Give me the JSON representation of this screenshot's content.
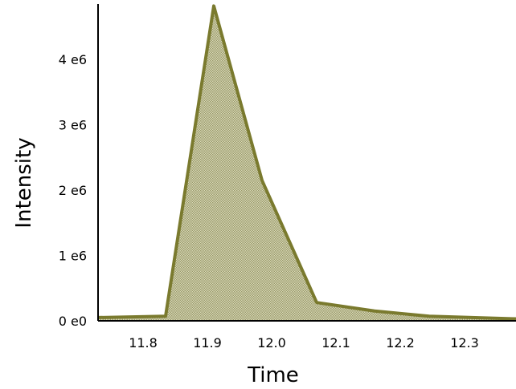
{
  "chart_data": {
    "type": "area",
    "xlabel": "Time",
    "ylabel": "Intensity",
    "xlim": [
      11.73,
      12.38
    ],
    "ylim": [
      0,
      4.85
    ],
    "y_unit_label": "e6",
    "x_ticks": [
      {
        "value": 11.8,
        "label": "11.8"
      },
      {
        "value": 11.9,
        "label": "11.9"
      },
      {
        "value": 12.0,
        "label": "12.0"
      },
      {
        "value": 12.1,
        "label": "12.1"
      },
      {
        "value": 12.2,
        "label": "12.2"
      },
      {
        "value": 12.3,
        "label": "12.3"
      }
    ],
    "y_ticks": [
      {
        "value": 0,
        "label": "0 e0"
      },
      {
        "value": 1,
        "label": "1  e6"
      },
      {
        "value": 2,
        "label": "2  e6"
      },
      {
        "value": 3,
        "label": "3  e6"
      },
      {
        "value": 4,
        "label": "4  e6"
      }
    ],
    "series": [
      {
        "x": [
          11.73,
          11.835,
          11.91,
          11.985,
          12.07,
          12.16,
          12.245,
          12.38
        ],
        "y": [
          0.05,
          0.07,
          4.82,
          2.15,
          0.28,
          0.15,
          0.07,
          0.03
        ]
      }
    ],
    "colors": {
      "line": "#7a7a2e",
      "fill": "#c9c9a0",
      "axis": "#000000"
    },
    "grid": false
  }
}
